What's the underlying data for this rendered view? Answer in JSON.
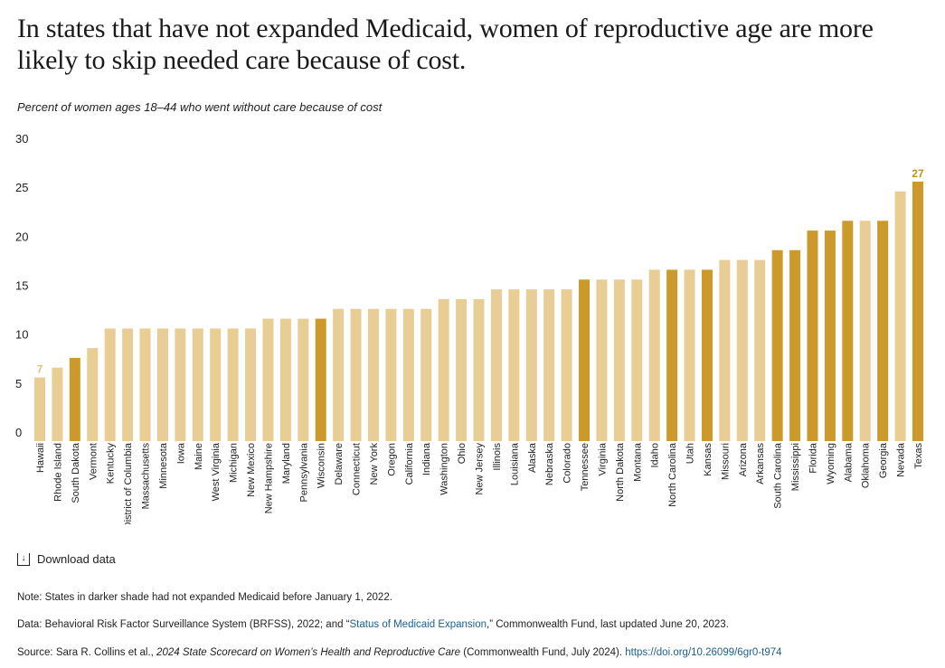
{
  "title": "In states that have not expanded Medicaid, women of reproductive age are more likely to skip needed care because of cost.",
  "subtitle": "Percent of women ages 18–44 who went without care because of cost",
  "download_label": "Download data",
  "note": "Note: States in darker shade had not expanded Medicaid before January 1, 2022.",
  "data_source": {
    "prefix": "Data: Behavioral Risk Factor Surveillance System (BRFSS), 2022; and “",
    "link_text": "Status of Medicaid Expansion",
    "suffix": ",” Commonwealth Fund, last updated June 20, 2023."
  },
  "source": {
    "prefix": "Source: Sara R. Collins et al., ",
    "italic": "2024 State Scorecard on Women’s Health and Reproductive Care",
    "middle": " (Commonwealth Fund, July 2024). ",
    "link_text": "https://doi.org/10.26099/6gr0-t974"
  },
  "colors": {
    "expanded": "#e8cd94",
    "not_expanded": "#cc9a2a",
    "label_light": "#e0c283",
    "label_dark": "#c1911f",
    "link": "#1f5f8b"
  },
  "chart_data": {
    "type": "bar",
    "ylim": [
      0,
      30
    ],
    "yticks": [
      "0",
      "5",
      "10",
      "15",
      "20",
      "25",
      "30"
    ],
    "grid": false,
    "categories": [
      "Hawaii",
      "Rhode Island",
      "South Dakota",
      "Vermont",
      "Kentucky",
      "District of Columbia",
      "Massachusetts",
      "Minnesota",
      "Iowa",
      "Maine",
      "West Virginia",
      "Michigan",
      "New Mexico",
      "New Hampshire",
      "Maryland",
      "Pennsylvania",
      "Wisconsin",
      "Delaware",
      "Connecticut",
      "New York",
      "Oregon",
      "California",
      "Indiana",
      "Washington",
      "Ohio",
      "New Jersey",
      "Illinois",
      "Louisiana",
      "Alaska",
      "Nebraska",
      "Colorado",
      "Tennessee",
      "Virginia",
      "North Dakota",
      "Montana",
      "Idaho",
      "North Carolina",
      "Utah",
      "Kansas",
      "Missouri",
      "Arizona",
      "Arkansas",
      "South Carolina",
      "Mississippi",
      "Florida",
      "Wyoming",
      "Alabama",
      "Oklahoma",
      "Georgia",
      "Nevada",
      "Texas"
    ],
    "values": [
      6.5,
      7.5,
      8.5,
      9.5,
      11.5,
      11.5,
      11.5,
      11.5,
      11.5,
      11.5,
      11.5,
      11.5,
      11.5,
      12.5,
      12.5,
      12.5,
      12.5,
      13.5,
      13.5,
      13.5,
      13.5,
      13.5,
      13.5,
      14.5,
      14.5,
      14.5,
      15.5,
      15.5,
      15.5,
      15.5,
      15.5,
      16.5,
      16.5,
      16.5,
      16.5,
      17.5,
      17.5,
      17.5,
      17.5,
      18.5,
      18.5,
      18.5,
      19.5,
      19.5,
      21.5,
      21.5,
      22.5,
      22.5,
      22.5,
      25.5,
      26.5
    ],
    "not_expanded": [
      false,
      false,
      true,
      false,
      false,
      false,
      false,
      false,
      false,
      false,
      false,
      false,
      false,
      false,
      false,
      false,
      true,
      false,
      false,
      false,
      false,
      false,
      false,
      false,
      false,
      false,
      false,
      false,
      false,
      false,
      false,
      true,
      false,
      false,
      false,
      false,
      true,
      false,
      true,
      false,
      false,
      false,
      true,
      true,
      true,
      true,
      true,
      false,
      true,
      false,
      true
    ],
    "annotations": [
      {
        "index": 0,
        "text": "7",
        "shade": "light"
      },
      {
        "index": 50,
        "text": "27",
        "shade": "dark"
      }
    ]
  }
}
